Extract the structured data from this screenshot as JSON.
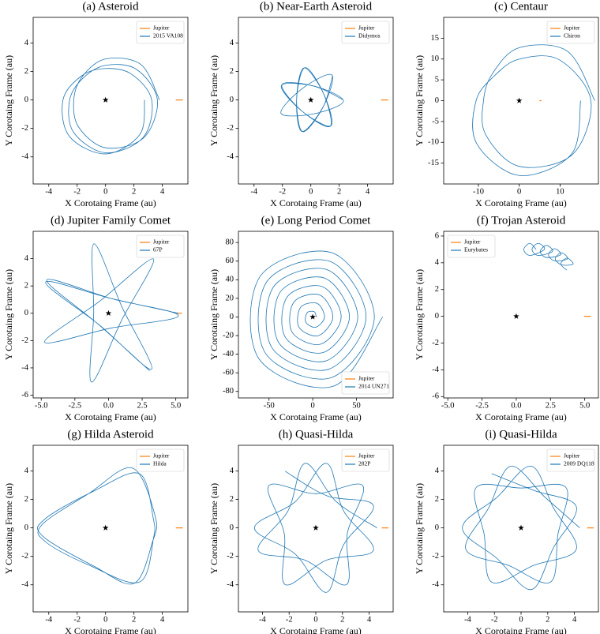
{
  "chart_data": [
    {
      "type": "line",
      "title": "(a) Asteroid",
      "xlabel": "X Corotaing Frame (au)",
      "ylabel": "Y Corotaing Frame (au)",
      "xlim": [
        -5.1,
        5.8
      ],
      "ylim": [
        -5.9,
        5.8
      ],
      "xticks": [
        -4,
        -2,
        0,
        2,
        4
      ],
      "yticks": [
        -4,
        -2,
        0,
        2,
        4
      ],
      "legend": "upper right",
      "star": {
        "x": 0,
        "y": 0
      },
      "series": [
        {
          "name": "Jupiter",
          "color": "#ff7f0e",
          "x": [
            4.95,
            5.45
          ],
          "y": [
            0,
            0
          ]
        },
        {
          "name": "2015 VA108",
          "color": "#1f77b4",
          "x": [
            3.8,
            2.49,
            0,
            -1.64,
            -2.24,
            -1.9,
            0,
            2.67,
            3.65,
            2.16,
            0,
            -1.56,
            -2.53,
            -2.26,
            0,
            2.64,
            3.25,
            1.82,
            0,
            -1.69,
            -3,
            -2.55,
            0,
            2.42,
            2.75
          ],
          "y": [
            0,
            2.49,
            2.88,
            1.64,
            0,
            -1.9,
            -3.36,
            -2.67,
            0,
            2.16,
            2.43,
            1.56,
            0,
            -2.26,
            -3.71,
            -2.64,
            0,
            1.82,
            2.21,
            1.69,
            0,
            -2.55,
            -3.79,
            -2.42,
            0
          ]
        }
      ]
    },
    {
      "type": "line",
      "title": "(b) Near-Earth Asteroid",
      "xlabel": "X Corotaing Frame (au)",
      "ylabel": "Y Corotaing Frame (au)",
      "xlim": [
        -5.1,
        5.8
      ],
      "ylim": [
        -5.9,
        5.8
      ],
      "xticks": [
        -4,
        -2,
        0,
        2,
        4
      ],
      "yticks": [
        -4,
        -2,
        0,
        2,
        4
      ],
      "legend": "upper right",
      "star": {
        "x": 0,
        "y": 0
      },
      "series": [
        {
          "name": "Jupiter",
          "color": "#ff7f0e",
          "x": [
            4.95,
            5.45
          ],
          "y": [
            0,
            0
          ]
        },
        {
          "name": "Didymos",
          "color": "#1f77b4",
          "x": [
            2.3,
            0.22,
            -2.07,
            -0.63,
            1.42,
            0.91,
            -0.48,
            -1.0,
            -0.56,
            0.89,
            1.48,
            -0.6,
            -2.1,
            0.19,
            2.3,
            0.26,
            -2.03,
            -0.66,
            1.35,
            0.92,
            -0.4,
            -1.0,
            -0.63,
            0.87,
            1.54
          ],
          "y": [
            0,
            0.97,
            1.01,
            -0.78,
            -1.81,
            0.42,
            2.25,
            0.02,
            -2.23,
            -0.45,
            1.76,
            0.8,
            -0.94,
            -0.98,
            -0.08,
            0.97,
            1.08,
            -0.75,
            -1.86,
            0.39,
            2.27,
            0.05,
            -2.21,
            -0.48,
            1.71
          ]
        }
      ]
    },
    {
      "type": "line",
      "title": "(c) Centaur",
      "xlabel": "X Corotaing Frame (au)",
      "ylabel": "Y Corotaing Frame (au)",
      "xlim": [
        -18.5,
        19.4
      ],
      "ylim": [
        -20,
        20
      ],
      "xticks": [
        -10,
        0,
        10
      ],
      "yticks": [
        -15,
        -10,
        -5,
        0,
        5,
        10,
        15
      ],
      "legend": "upper right",
      "star": {
        "x": 0,
        "y": 0
      },
      "series": [
        {
          "name": "Jupiter",
          "color": "#ff7f0e",
          "x": [
            4.95,
            5.45
          ],
          "y": [
            0,
            0
          ]
        },
        {
          "name": "Chiron",
          "color": "#1f77b4",
          "x": [
            18.5,
            11.84,
            0,
            -6.53,
            -8.75,
            -8.19,
            0,
            12.98,
            17.55,
            9.82,
            0,
            -6.02,
            -10.56,
            -10.37,
            0,
            12.81,
            15.05
          ],
          "y": [
            0,
            11.84,
            12.72,
            6.53,
            0,
            -8.19,
            -15.77,
            -12.98,
            0,
            9.82,
            9.97,
            6.02,
            0,
            -10.37,
            -17.96,
            -12.81,
            0
          ]
        }
      ]
    },
    {
      "type": "line",
      "title": "(d) Jupiter Family Comet",
      "xlabel": "X Corotaing Frame (au)",
      "ylabel": "Y Corotaing Frame (au)",
      "xlim": [
        -5.6,
        5.9
      ],
      "ylim": [
        -6.2,
        6.0
      ],
      "xticks": [
        {
          "value": -5,
          "label": "-5.0"
        },
        -2.5,
        {
          "value": 0,
          "label": "0.0"
        },
        2.5,
        {
          "value": 5,
          "label": "5.0"
        }
      ],
      "yticks": [
        -6,
        -4,
        -2,
        0,
        2,
        4
      ],
      "legend": "upper right",
      "star": {
        "x": 0,
        "y": 0
      },
      "series": [
        {
          "name": "Jupiter",
          "color": "#ff7f0e",
          "x": [
            4.95,
            5.45
          ],
          "y": [
            0,
            0
          ]
        },
        {
          "name": "67P",
          "color": "#1f77b4",
          "x": [
            5.2,
            0.25,
            -4.67,
            -0.69,
            3.2,
            1.0,
            -1.08,
            -1.1,
            -1.26,
            0.98,
            3.34,
            -0.66,
            -4.75,
            0.21,
            5.2,
            0.28,
            -4.59,
            -0.73,
            3.06
          ],
          "y": [
            0,
            1.07,
            2.28,
            -0.85,
            -4.1,
            0.46,
            5.09,
            0.02,
            -5.04,
            -0.5,
            3.98,
            0.88,
            -2.12,
            -1.08,
            -0.18,
            1.06,
            2.44,
            -0.83,
            -4.21
          ]
        }
      ]
    },
    {
      "type": "line",
      "title": "(e) Long Period Comet",
      "xlabel": "X Corotaing Frame (au)",
      "ylabel": "Y Corotaing Frame (au)",
      "xlim": [
        -85,
        92
      ],
      "ylim": [
        -87,
        92
      ],
      "xticks": [
        -50,
        0,
        50
      ],
      "yticks": [
        -80,
        -60,
        -40,
        -20,
        0,
        20,
        40,
        60,
        80
      ],
      "legend": "lower right",
      "star": {
        "x": 0,
        "y": 0
      },
      "series": [
        {
          "name": "Jupiter",
          "color": "#ff7f0e",
          "x": [
            4.95,
            5.45
          ],
          "y": [
            0,
            0
          ]
        },
        {
          "name": "2014 UN271",
          "color": "#1f77b4",
          "x": [
            4,
            1.82,
            -6.31,
            -7.85,
            3.58,
            13.5,
            4.76,
            -14.0,
            -15.53,
            6.52,
            23,
            7.69,
            -21.68,
            -23.22,
            9.46,
            32.5,
            10.63,
            -29.37,
            -30.9,
            12.39,
            42,
            13.57,
            -37.05,
            -38.59,
            15.33,
            51.5,
            16.5,
            -44.74,
            -46.27,
            18.26,
            61,
            19.44,
            -52.42,
            -53.96,
            21.2,
            70.5,
            22.37,
            -60.11,
            -61.65,
            24.13,
            80
          ],
          "y": [
            0,
            5.61,
            4.59,
            -5.7,
            -11.03,
            0,
            14.65,
            10.17,
            -11.29,
            -20.07,
            0,
            23.68,
            15.76,
            -16.88,
            -29.1,
            0,
            32.71,
            21.34,
            -22.46,
            -38.14,
            0,
            41.75,
            26.93,
            -28.05,
            -47.17,
            0,
            50.78,
            32.52,
            -33.63,
            -56.2,
            0,
            59.82,
            38.1,
            -39.22,
            -65.24,
            0,
            68.85,
            43.69,
            -44.81,
            -74.27,
            0
          ]
        }
      ]
    },
    {
      "type": "line",
      "title": "(f) Trojan Asteroid",
      "xlabel": "X Corotaing Frame (au)",
      "ylabel": "Y Corotaing Frame (au)",
      "xlim": [
        -5.3,
        6.0
      ],
      "ylim": [
        -6.1,
        6.35
      ],
      "xticks": [
        {
          "value": -5,
          "label": "-5.0"
        },
        -2.5,
        {
          "value": 0,
          "label": "0.0"
        },
        2.5,
        {
          "value": 5,
          "label": "5.0"
        }
      ],
      "yticks": [
        -6,
        -4,
        -2,
        0,
        2,
        4,
        6
      ],
      "legend": "upper left",
      "star": {
        "x": 0,
        "y": 0
      },
      "series": [
        {
          "name": "Jupiter",
          "color": "#ff7f0e",
          "x": [
            4.95,
            5.45
          ],
          "y": [
            0,
            0
          ]
        },
        {
          "name": "Eurybates",
          "color": "#1f77b4",
          "x": [
            1.45,
            1.0,
            0.55,
            1.0,
            2.05,
            1.6,
            1.15,
            1.6,
            2.65,
            2.2,
            1.75,
            2.2,
            3.25,
            2.8,
            2.35,
            2.8,
            3.75,
            3.3,
            2.85,
            3.3,
            4.15,
            3.7,
            3.25,
            3.7
          ],
          "y": [
            5.0,
            5.45,
            5.0,
            4.55,
            5.0,
            5.45,
            5.0,
            4.55,
            4.85,
            5.3,
            4.85,
            4.4,
            4.6,
            5.05,
            4.6,
            4.15,
            4.3,
            4.75,
            4.3,
            3.85,
            3.9,
            4.35,
            3.9,
            3.45
          ]
        }
      ]
    },
    {
      "type": "line",
      "title": "(g) Hilda Asteroid",
      "xlabel": "X Corotaing Frame (au)",
      "ylabel": "Y Corotaing Frame (au)",
      "xlim": [
        -5.1,
        5.8
      ],
      "ylim": [
        -5.9,
        5.8
      ],
      "xticks": [
        -4,
        -2,
        0,
        2,
        4
      ],
      "yticks": [
        -4,
        -2,
        0,
        2,
        4
      ],
      "legend": "upper right",
      "star": {
        "x": 0,
        "y": 0
      },
      "series": [
        {
          "name": "Jupiter",
          "color": "#ff7f0e",
          "x": [
            4.95,
            5.45
          ],
          "y": [
            0,
            0
          ]
        },
        {
          "name": "Hilda",
          "color": "#1f77b4",
          "x": [
            3.4,
            2.4,
            -0.8,
            -4.3,
            -4.4,
            -0.8,
            2.0,
            3.3,
            3.5,
            1.9,
            -1.2,
            -4.5,
            -4.2,
            -1.2,
            2.4,
            3.4,
            3.4
          ],
          "y": [
            0.5,
            3.8,
            2.6,
            0.6,
            -0.6,
            -2.7,
            -3.9,
            -1.0,
            0.8,
            4.2,
            2.4,
            0.2,
            -1.0,
            -2.6,
            -3.8,
            -0.6,
            0.5
          ]
        }
      ]
    },
    {
      "type": "line",
      "title": "(h) Quasi-Hilda",
      "xlabel": "X Corotaing Frame (au)",
      "ylabel": "Y Corotaing Frame (au)",
      "xlim": [
        -5.8,
        5.8
      ],
      "ylim": [
        -5.9,
        5.8
      ],
      "xticks": [
        -4,
        -2,
        0,
        2,
        4
      ],
      "yticks": [
        -4,
        -2,
        0,
        2,
        4
      ],
      "legend": "upper right",
      "star": {
        "x": 0,
        "y": 0
      },
      "series": [
        {
          "name": "Jupiter",
          "color": "#ff7f0e",
          "x": [
            4.95,
            5.45
          ],
          "y": [
            0,
            0
          ]
        },
        {
          "name": "282P",
          "color": "#1f77b4",
          "x": [
            4.6,
            1.54,
            -0.8,
            -2.08,
            -4.32,
            -0.82,
            2.3,
            2.36,
            3.52,
            0,
            -3.52,
            -2.36,
            -2.3,
            0.82,
            4.32,
            2.08,
            0.8,
            -1.54,
            -4.6,
            -1.54,
            0.8,
            2.08,
            4.32,
            0.82,
            -2.3
          ],
          "y": [
            0,
            1.84,
            4.53,
            1.2,
            -1.57,
            -2.26,
            -3.98,
            -0.42,
            2.96,
            2.4,
            2.96,
            -0.42,
            -3.98,
            -2.26,
            -1.57,
            1.2,
            4.53,
            1.84,
            0,
            -1.84,
            -4.53,
            -1.2,
            1.57,
            2.26,
            3.98
          ]
        }
      ]
    },
    {
      "type": "line",
      "title": "(i) Quasi-Hilda",
      "xlabel": "X Corotaing Frame (au)",
      "ylabel": "Y Corotaing Frame (au)",
      "xlim": [
        -5.8,
        5.8
      ],
      "ylim": [
        -5.9,
        5.8
      ],
      "xticks": [
        -4,
        -2,
        0,
        2,
        4
      ],
      "yticks": [
        -4,
        -2,
        0,
        2,
        4
      ],
      "legend": "upper right",
      "star": {
        "x": 0,
        "y": 0
      },
      "series": [
        {
          "name": "Jupiter",
          "color": "#ff7f0e",
          "x": [
            4.95,
            5.45
          ],
          "y": [
            0,
            0
          ]
        },
        {
          "name": "2009 DQ118",
          "color": "#1f77b4",
          "x": [
            4.4,
            1.8,
            -0.77,
            -2.43,
            -4.14,
            -0.96,
            2.2,
            2.76,
            3.37,
            0,
            -3.37,
            -2.76,
            -2.2,
            0.96,
            4.14,
            2.43,
            0.77,
            -1.8,
            -4.4,
            -1.8,
            0.77,
            2.43,
            4.14,
            0.96,
            -2.2
          ],
          "y": [
            0,
            2.15,
            4.33,
            1.4,
            -1.5,
            -2.63,
            -3.81,
            -0.49,
            2.83,
            2.8,
            2.83,
            -0.49,
            -3.81,
            -2.63,
            -1.5,
            1.4,
            4.33,
            2.15,
            0,
            -2.15,
            -4.33,
            -1.4,
            1.5,
            2.63,
            3.81
          ]
        }
      ]
    }
  ]
}
